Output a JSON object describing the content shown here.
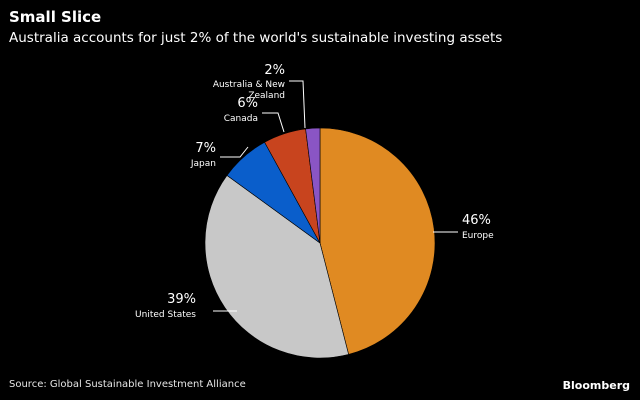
{
  "header": {
    "title": "Small Slice",
    "subtitle": "Australia accounts for just 2% of the world's sustainable investing assets"
  },
  "footer": {
    "source": "Source: Global Sustainable Investment Alliance",
    "brand": "Bloomberg"
  },
  "chart_data": {
    "type": "pie",
    "start_angle_deg": 0,
    "direction": "clockwise",
    "slices": [
      {
        "label": "Europe",
        "value": 46,
        "value_label": "46%",
        "color": "#e08a22"
      },
      {
        "label": "United States",
        "value": 39,
        "value_label": "39%",
        "color": "#c8c8c8"
      },
      {
        "label": "Japan",
        "value": 7,
        "value_label": "7%",
        "color": "#0a5ecb"
      },
      {
        "label": "Canada",
        "value": 6,
        "value_label": "6%",
        "color": "#c8441e"
      },
      {
        "label": "Australia & New Zealand",
        "label_lines": [
          "Australia & New",
          "Zealand"
        ],
        "value": 2,
        "value_label": "2%",
        "color": "#8a55c4"
      }
    ]
  }
}
